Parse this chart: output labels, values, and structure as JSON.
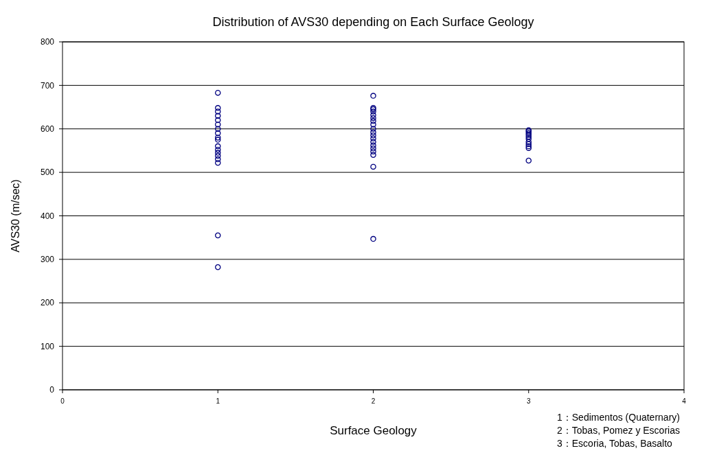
{
  "chart_data": {
    "type": "scatter",
    "title": "Distribution of AVS30 depending on Each Surface Geology",
    "xlabel": "Surface Geology",
    "ylabel": "AVS30 (m/sec)",
    "xlim": [
      0,
      4
    ],
    "xticks": [
      0,
      1,
      2,
      3,
      4
    ],
    "ylim": [
      0,
      800
    ],
    "yticks": [
      0,
      100,
      200,
      300,
      400,
      500,
      600,
      700,
      800
    ],
    "grid": "y",
    "marker": "circle",
    "series": [
      {
        "color": "#000080",
        "x": [
          1,
          1,
          1,
          1,
          1,
          1,
          1,
          1,
          1,
          1,
          1,
          1,
          1,
          1,
          1,
          1,
          1,
          1,
          2,
          2,
          2,
          2,
          2,
          2,
          2,
          2,
          2,
          2,
          2,
          2,
          2,
          2,
          2,
          2,
          2,
          2,
          2,
          3,
          3,
          3,
          3,
          3,
          3,
          3,
          3,
          3,
          3,
          3
        ],
        "values": [
          683,
          648,
          640,
          630,
          620,
          610,
          600,
          590,
          580,
          575,
          560,
          552,
          545,
          538,
          530,
          522,
          355,
          282,
          676,
          648,
          645,
          640,
          632,
          625,
          618,
          610,
          600,
          592,
          585,
          578,
          570,
          562,
          555,
          548,
          540,
          513,
          347,
          597,
          594,
          590,
          586,
          582,
          577,
          570,
          565,
          560,
          556,
          527
        ]
      }
    ],
    "annotations": [
      "1：Sedimentos (Quaternary)",
      "2：Tobas, Pomez y Escorias",
      "3：Escoria, Tobas, Basalto"
    ]
  }
}
